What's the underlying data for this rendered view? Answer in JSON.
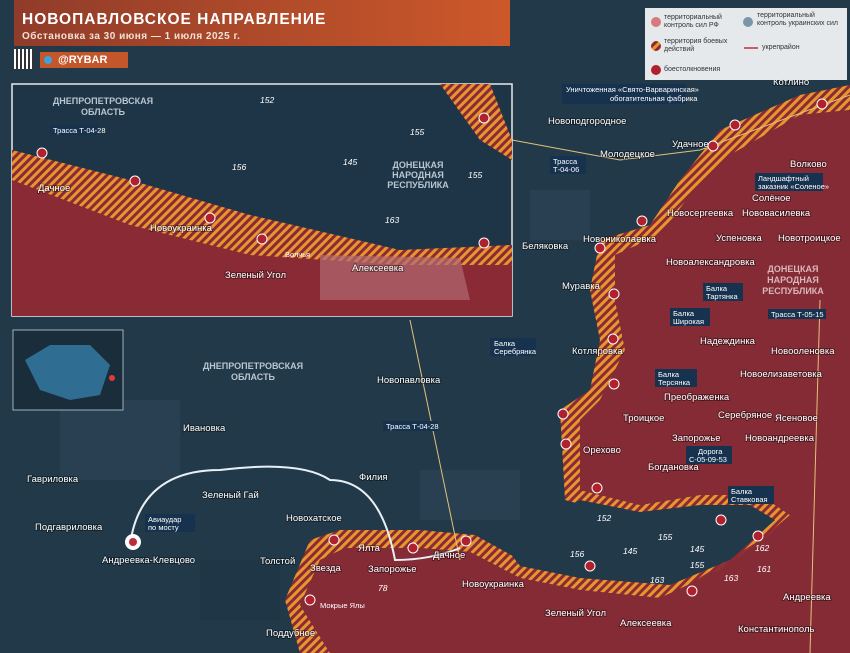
{
  "header": {
    "title": "НОВОПАВЛОВСКОЕ НАПРАВЛЕНИЕ",
    "subtitle": "Обстановка за 30 июня — 1 июля 2025 г.",
    "handle": "@RYBAR"
  },
  "legend": {
    "rf_control": "территориальный контроль сил РФ",
    "ua_control": "территориальный контроль украинских сил",
    "combat_zone": "территория боевых действий",
    "fortified_area": "укрепрайон",
    "clashes": "боестолкновения"
  },
  "colors": {
    "rf": "#8a2a35",
    "ua": "#23394a",
    "combat": "#e7962f",
    "clash": "#b0202d"
  },
  "regions": {
    "dnipro": [
      "ДНЕПРОПЕТРОВСКАЯ",
      "ОБЛАСТЬ"
    ],
    "dnr": [
      "ДОНЕЦКАЯ",
      "НАРОДНАЯ",
      "РЕСПУБЛИКА"
    ]
  },
  "places": [
    "Котлино",
    "Новоподгородное",
    "Молодецкое",
    "Удачное",
    "Волково",
    "Солёное",
    "Новосергеевка",
    "Нововасилевка",
    "Новониколаевка",
    "Успеновка",
    "Новотроицкое",
    "Беляковка",
    "Новоалександровка",
    "Муравка",
    "Надеждинка",
    "Котляровка",
    "Новооленовка",
    "Новоелизаветовка",
    "Преображенка",
    "Троицкое",
    "Серебряное",
    "Ясеновое",
    "Запорожье",
    "Новоандреевка",
    "Орехово",
    "Богдановка",
    "Андреевка",
    "Константинополь",
    "Алексеевка",
    "Зеленый Угол",
    "Новоукраинка",
    "Дачное",
    "Новопавловка",
    "Ивановка",
    "Гавриловка",
    "Подгавриловка",
    "Андреевка-Клевцово",
    "Зеленый Гай",
    "Новохатское",
    "Толстой",
    "Звезда",
    "Ялта",
    "Запорожье",
    "Поддубное",
    "Филия"
  ],
  "callouts": {
    "factory": [
      "Уничтоженная «Свято-Варваринская»",
      "обогатительная фабрика"
    ],
    "t0406": [
      "Трасса",
      "Т-04-06"
    ],
    "reserve": [
      "Ландшафтный",
      "заказник «Соленое»"
    ],
    "tartyanka": [
      "Балка",
      "Тартянка"
    ],
    "shirokaya": [
      "Балка",
      "Широкая"
    ],
    "t0515": "Трасса Т-05-15",
    "serebryanka": [
      "Балка",
      "Серебрянка"
    ],
    "tersyanka": [
      "Балка",
      "Терсянка"
    ],
    "road": [
      "Дорога",
      "С-05-09-53"
    ],
    "stavkovaya": [
      "Балка",
      "Ставковая"
    ],
    "t0428": "Трасса Т-04-28",
    "airstrike": [
      "Авиаудар",
      "по мосту"
    ]
  },
  "rivers": {
    "volchya": "Волчья",
    "mokrye_yaly": "Мокрые Ялы"
  },
  "heights": [
    "152",
    "156",
    "145",
    "155",
    "163",
    "145",
    "155",
    "163",
    "162",
    "161",
    "78"
  ],
  "inset": {
    "places": [
      "Дачное",
      "Новоукраинка",
      "Зеленый Угол",
      "Алексеевка"
    ],
    "road": "Трасса Т-04-28",
    "heights": [
      "152",
      "156",
      "145",
      "155",
      "155",
      "163"
    ]
  }
}
